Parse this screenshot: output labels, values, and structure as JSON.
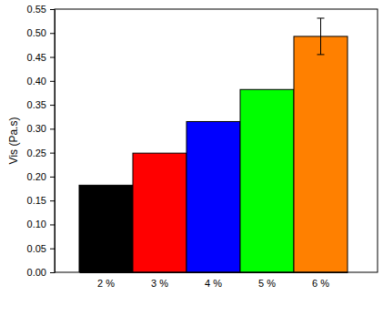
{
  "chart_data": {
    "type": "bar",
    "y_label": "Vis (Pa.s)",
    "categories": [
      "2 %",
      "3 %",
      "4 %",
      "5 %",
      "6 %"
    ],
    "values": [
      0.182,
      0.249,
      0.315,
      0.382,
      0.493
    ],
    "errors": [
      null,
      null,
      null,
      null,
      0.038
    ],
    "colors": [
      "#000000",
      "#ff0000",
      "#0000ff",
      "#00ff00",
      "#ff8000"
    ],
    "ylim": [
      0,
      0.55
    ],
    "yticks": [
      {
        "value": 0,
        "label": "0.00"
      },
      {
        "value": 0.05,
        "label": "0.05"
      },
      {
        "value": 0.1,
        "label": "0.10"
      },
      {
        "value": 0.15,
        "label": "0.15"
      },
      {
        "value": 0.2,
        "label": "0.20"
      },
      {
        "value": 0.25,
        "label": "0.25"
      },
      {
        "value": 0.3,
        "label": "0.30"
      },
      {
        "value": 0.35,
        "label": "0.35"
      },
      {
        "value": 0.4,
        "label": "0.40"
      },
      {
        "value": 0.45,
        "label": "0.45"
      },
      {
        "value": 0.5,
        "label": "0.50"
      },
      {
        "value": 0.55,
        "label": "0.55"
      }
    ],
    "grid": false
  }
}
